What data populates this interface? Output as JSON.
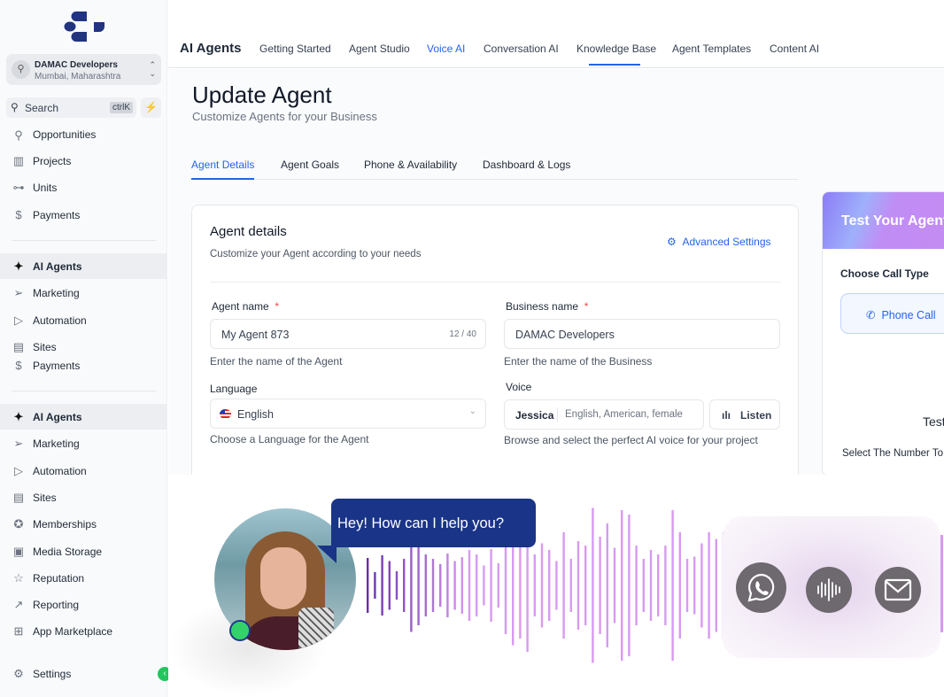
{
  "sidebar": {
    "location": {
      "name": "DAMAC Developers",
      "address": "Mumbai, Maharashtra"
    },
    "search": {
      "label": "Search",
      "shortcut": "ctrlK"
    },
    "items_top": [
      {
        "label": "Opportunities",
        "icon": "funnel-icon"
      },
      {
        "label": "Projects",
        "icon": "building-icon"
      },
      {
        "label": "Units",
        "icon": "key-icon"
      },
      {
        "label": "Payments",
        "icon": "dollar-receipt-icon"
      }
    ],
    "group1": [
      {
        "label": "AI Agents",
        "icon": "sparkles-icon",
        "active": true
      },
      {
        "label": "Marketing",
        "icon": "send-icon"
      },
      {
        "label": "Automation",
        "icon": "play-circle-icon"
      },
      {
        "label": "Sites",
        "icon": "browser-icon"
      },
      {
        "label": "Payments",
        "icon": "dollar-receipt-icon"
      }
    ],
    "group2": [
      {
        "label": "AI Agents",
        "icon": "sparkles-icon",
        "active": true
      },
      {
        "label": "Marketing",
        "icon": "send-icon"
      },
      {
        "label": "Automation",
        "icon": "play-circle-icon"
      },
      {
        "label": "Sites",
        "icon": "browser-icon"
      },
      {
        "label": "Memberships",
        "icon": "award-icon"
      },
      {
        "label": "Media Storage",
        "icon": "image-icon"
      },
      {
        "label": "Reputation",
        "icon": "star-icon"
      },
      {
        "label": "Reporting",
        "icon": "trend-icon"
      },
      {
        "label": "App Marketplace",
        "icon": "grid-icon"
      }
    ],
    "settings": "Settings"
  },
  "topnav": {
    "brand": "AI Agents",
    "tabs": [
      "Getting Started",
      "Agent Studio",
      "Voice AI",
      "Conversation AI",
      "Knowledge Base",
      "Agent Templates",
      "Content AI"
    ],
    "active": "Voice AI"
  },
  "page": {
    "title": "Update Agent",
    "subtitle": "Customize Agents for your Business",
    "tabs": [
      "Agent Details",
      "Agent Goals",
      "Phone & Availability",
      "Dashboard & Logs"
    ],
    "active_tab": "Agent Details"
  },
  "card": {
    "title": "Agent details",
    "subtitle": "Customize your Agent according to your needs",
    "advanced": "Advanced Settings",
    "agent_name": {
      "label": "Agent name",
      "required": "*",
      "value": "My Agent 873",
      "count": "12 / 40",
      "hint": "Enter the name of the Agent"
    },
    "business_name": {
      "label": "Business name",
      "required": "*",
      "value": "DAMAC Developers",
      "hint": "Enter the name of the Business"
    },
    "language": {
      "label": "Language",
      "value": "English",
      "hint": "Choose a Language for the Agent"
    },
    "voice": {
      "label": "Voice",
      "name": "Jessica",
      "desc": "English, American, female",
      "listen": "Listen",
      "hint": "Browse and select the perfect AI voice for your project"
    }
  },
  "test_panel": {
    "title": "Test Your Agent",
    "call_type_label": "Choose Call Type",
    "phone_call": "Phone Call",
    "test_label": "Test",
    "select_number": "Select The Number To"
  },
  "promo": {
    "bubble": "Hey! How can I help you?",
    "status": "online",
    "channels": [
      "whatsapp-icon",
      "voice-wave-icon",
      "mail-icon"
    ],
    "colors": {
      "bubble": "#1a3487",
      "wave_dark": "#6b2fa8",
      "wave_light": "#d79af0",
      "online": "#34d36a"
    }
  }
}
